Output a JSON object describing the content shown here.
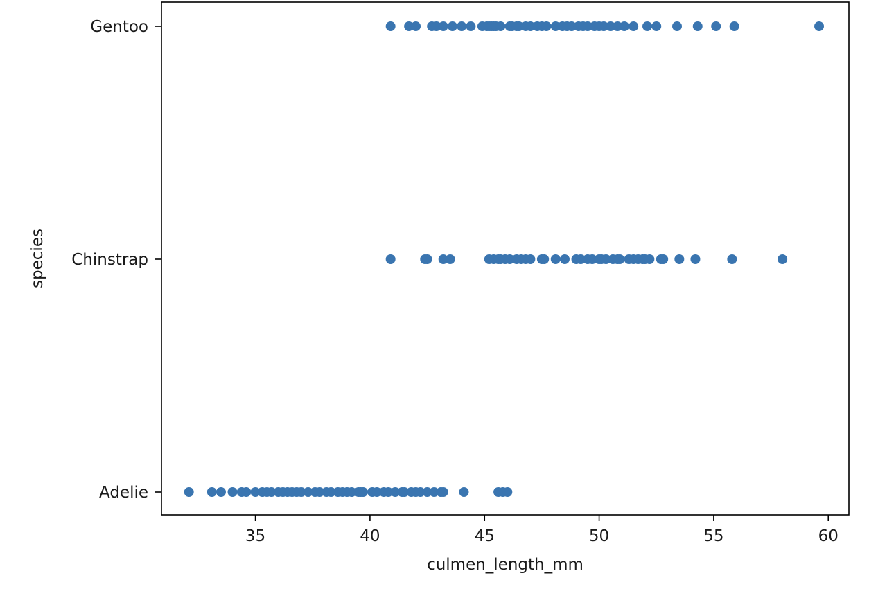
{
  "chart_data": {
    "type": "scatter",
    "title": "",
    "xlabel": "culmen_length_mm",
    "ylabel": "species",
    "xlim": [
      30.9,
      60.9
    ],
    "x_ticks": [
      35,
      40,
      45,
      50,
      55,
      60
    ],
    "categories": [
      "Adelie",
      "Chinstrap",
      "Gentoo"
    ],
    "grid": false,
    "legend": "none",
    "marker_color": "#3a75b0",
    "series": [
      {
        "category": "Gentoo",
        "x": [
          40.9,
          41.7,
          42.0,
          42.7,
          42.9,
          43.2,
          43.6,
          44.0,
          44.4,
          44.9,
          45.1,
          45.2,
          45.3,
          45.4,
          45.5,
          45.7,
          46.1,
          46.2,
          46.4,
          46.5,
          46.8,
          47.0,
          47.3,
          47.5,
          47.7,
          48.1,
          48.4,
          48.6,
          48.8,
          49.1,
          49.3,
          49.5,
          49.8,
          50.0,
          50.2,
          50.5,
          50.8,
          51.1,
          51.5,
          52.1,
          52.5,
          53.4,
          54.3,
          55.1,
          55.9,
          59.6
        ]
      },
      {
        "category": "Chinstrap",
        "x": [
          40.9,
          42.4,
          42.5,
          43.2,
          43.5,
          45.2,
          45.4,
          45.6,
          45.7,
          45.9,
          46.1,
          46.4,
          46.6,
          46.8,
          47.0,
          47.5,
          47.6,
          48.1,
          48.5,
          49.0,
          49.2,
          49.5,
          49.7,
          50.0,
          50.1,
          50.3,
          50.6,
          50.8,
          50.9,
          51.3,
          51.5,
          51.7,
          51.9,
          52.0,
          52.2,
          52.7,
          52.8,
          53.5,
          54.2,
          55.8,
          58.0
        ]
      },
      {
        "category": "Adelie",
        "x": [
          32.1,
          33.1,
          33.5,
          34.0,
          34.4,
          34.6,
          35.0,
          35.3,
          35.5,
          35.7,
          36.0,
          36.2,
          36.4,
          36.6,
          36.8,
          37.0,
          37.3,
          37.6,
          37.8,
          38.1,
          38.3,
          38.6,
          38.8,
          39.0,
          39.2,
          39.5,
          39.6,
          39.7,
          40.1,
          40.3,
          40.6,
          40.8,
          41.1,
          41.4,
          41.5,
          41.8,
          42.0,
          42.2,
          42.5,
          42.8,
          43.1,
          43.2,
          44.1,
          45.6,
          45.8,
          46.0
        ]
      }
    ]
  }
}
